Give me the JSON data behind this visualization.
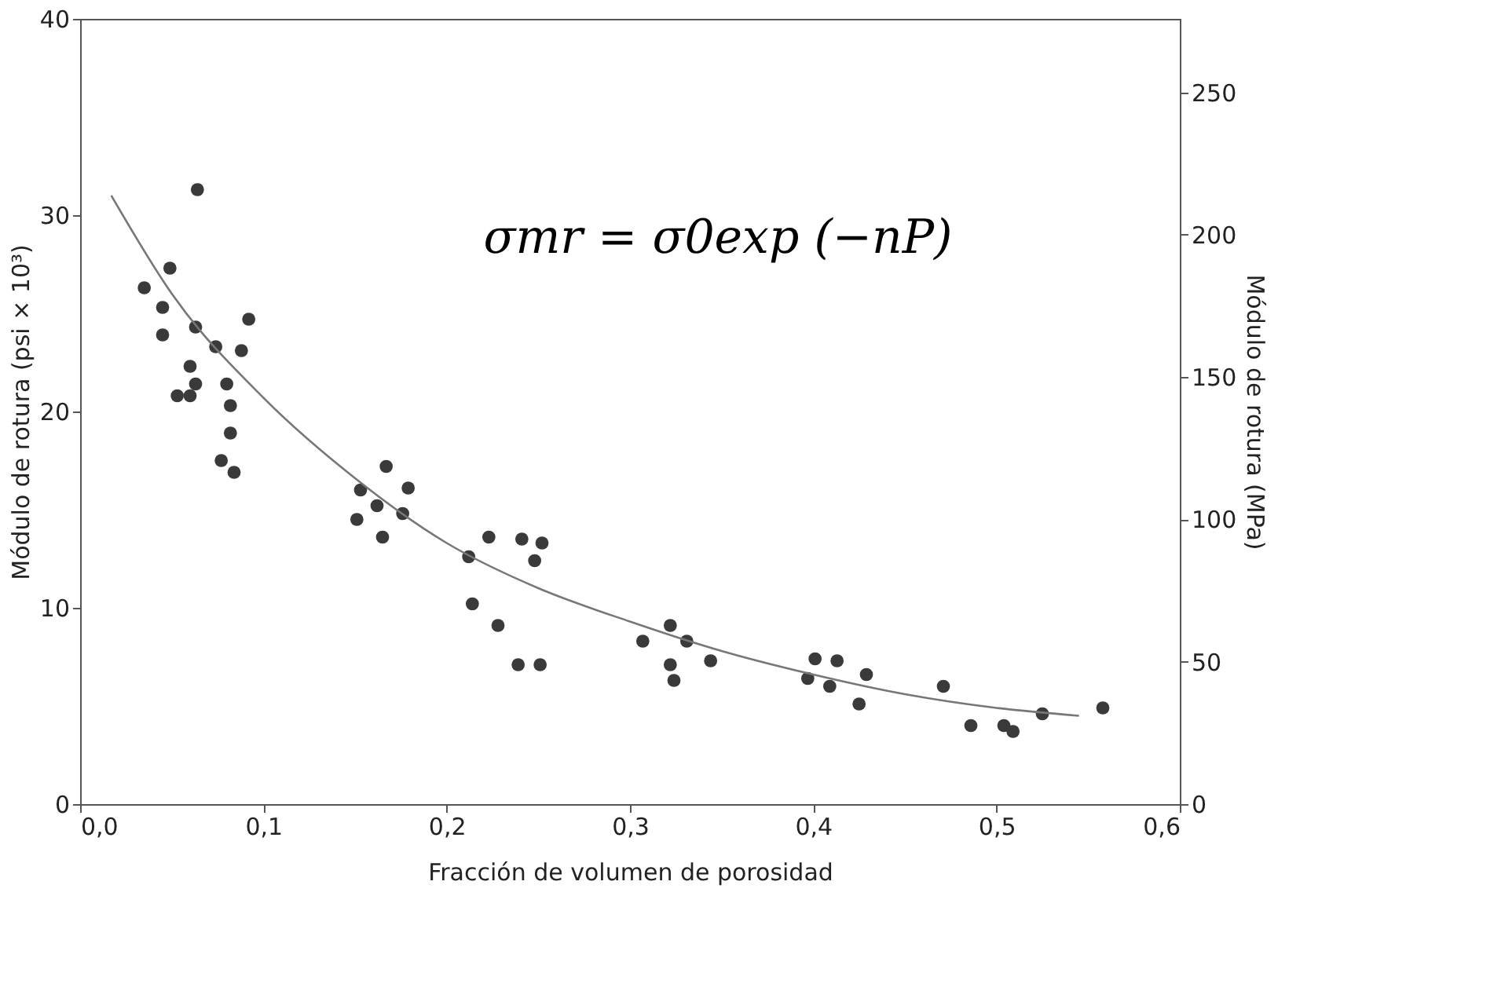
{
  "chart_data": {
    "type": "scatter",
    "xlabel": "Fracción de volumen de porosidad",
    "ylabel": "Módulo de rotura (psi × 10³)",
    "y2label": "Módulo de rotura (MPa)",
    "annotations": [
      "σmr = σ0exp (−nP)"
    ],
    "xlim": [
      0,
      0.6
    ],
    "xticks": [
      {
        "value": 0,
        "label": "0,0"
      },
      {
        "value": 0.1,
        "label": "0,1"
      },
      {
        "value": 0.2,
        "label": "0,2"
      },
      {
        "value": 0.3,
        "label": "0,3"
      },
      {
        "value": 0.4,
        "label": "0,4"
      },
      {
        "value": 0.5,
        "label": "0,5"
      },
      {
        "value": 0.6,
        "label": "0,6"
      }
    ],
    "ylim": [
      0,
      40
    ],
    "yticks": [
      0,
      10,
      20,
      30,
      40
    ],
    "y2lim": [
      0,
      275.8
    ],
    "y2ticks": [
      0,
      50,
      100,
      150,
      200,
      250
    ],
    "grid": false,
    "series": [
      {
        "marker": "circle",
        "color": "#3a3a3a",
        "x": [
          0.064,
          0.049,
          0.035,
          0.045,
          0.045,
          0.063,
          0.074,
          0.092,
          0.088,
          0.06,
          0.063,
          0.053,
          0.06,
          0.08,
          0.082,
          0.082,
          0.077,
          0.084,
          0.167,
          0.153,
          0.179,
          0.162,
          0.151,
          0.176,
          0.165,
          0.223,
          0.241,
          0.252,
          0.248,
          0.212,
          0.214,
          0.228,
          0.239,
          0.251,
          0.322,
          0.307,
          0.331,
          0.344,
          0.322,
          0.324,
          0.401,
          0.413,
          0.397,
          0.409,
          0.429,
          0.425,
          0.471,
          0.486,
          0.504,
          0.509,
          0.525,
          0.558
        ],
        "values": [
          31.3,
          27.3,
          26.3,
          25.3,
          23.9,
          24.3,
          23.3,
          24.7,
          23.1,
          22.3,
          21.4,
          20.8,
          20.8,
          21.4,
          20.3,
          18.9,
          17.5,
          16.9,
          17.2,
          16.0,
          16.1,
          15.2,
          14.5,
          14.8,
          13.6,
          13.6,
          13.5,
          13.3,
          12.4,
          12.6,
          10.2,
          9.1,
          7.1,
          7.1,
          9.1,
          8.3,
          8.3,
          7.3,
          7.1,
          6.3,
          7.4,
          7.3,
          6.4,
          6.0,
          6.6,
          5.1,
          6.0,
          4.0,
          4.0,
          3.7,
          4.6,
          4.9
        ]
      },
      {
        "type": "line",
        "color": "#777777",
        "line_style": "solid",
        "x": [
          0.017,
          0.05,
          0.1,
          0.15,
          0.2,
          0.25,
          0.3,
          0.35,
          0.4,
          0.45,
          0.5,
          0.545
        ],
        "values": [
          31.0,
          26.0,
          20.7,
          16.6,
          13.3,
          11.0,
          9.3,
          7.8,
          6.6,
          5.6,
          4.9,
          4.5
        ]
      }
    ]
  }
}
